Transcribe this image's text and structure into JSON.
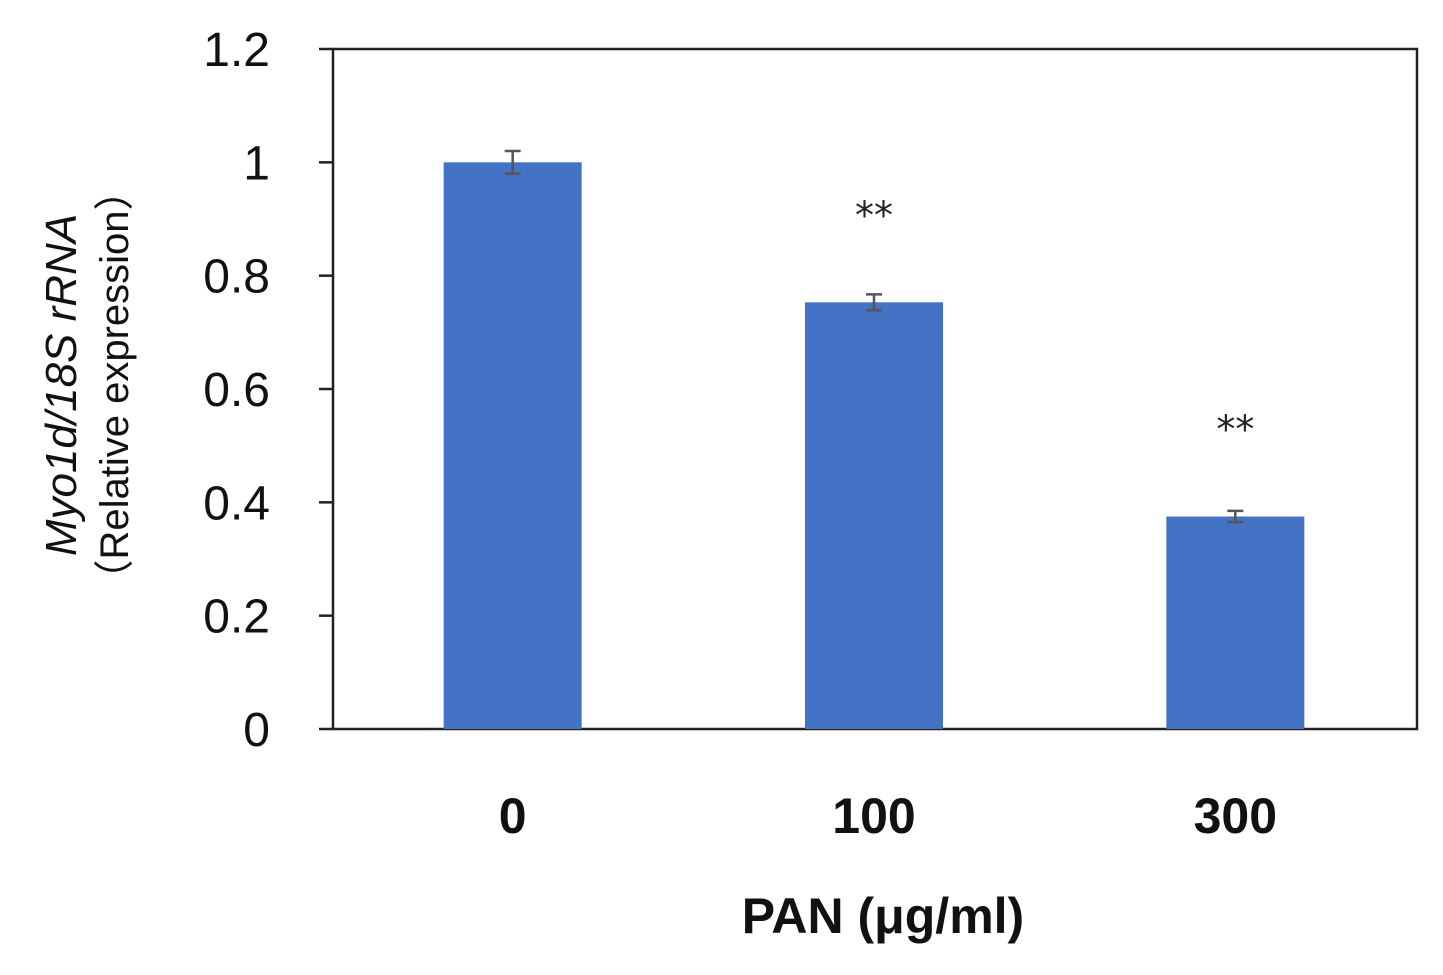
{
  "chart_data": {
    "type": "bar",
    "categories": [
      "0",
      "100",
      "300"
    ],
    "values": [
      1.0,
      0.753,
      0.375
    ],
    "errors": [
      0.02,
      0.014,
      0.01
    ],
    "annotations": [
      "",
      "**",
      "**"
    ],
    "xlabel": "PAN (μg/ml)",
    "ylabel_line1": "Myo1d/18S rRNA",
    "ylabel_line2": "（Relative expression）",
    "ylim": [
      0,
      1.2
    ],
    "yticks": [
      "0",
      "0.2",
      "0.4",
      "0.6",
      "0.8",
      "1",
      "1.2"
    ],
    "ytick_values": [
      0,
      0.2,
      0.4,
      0.6,
      0.8,
      1.0,
      1.2
    ],
    "bar_color": "#4472C4",
    "error_color": "#555555",
    "grid": false,
    "legend": "none"
  }
}
